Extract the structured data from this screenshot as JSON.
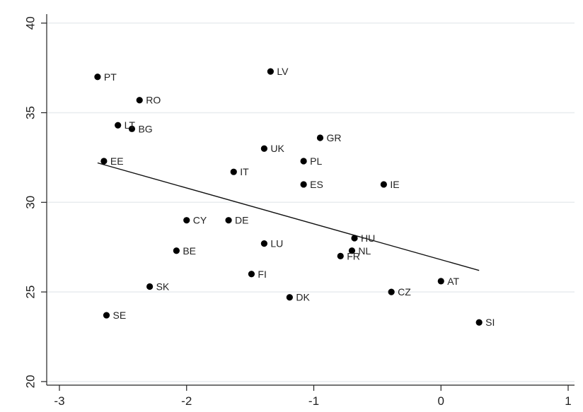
{
  "chart_data": {
    "type": "scatter",
    "title": "",
    "xlabel": "",
    "ylabel": "",
    "xlim": [
      -3.1,
      1.05
    ],
    "ylim": [
      19.8,
      40.5
    ],
    "x_ticks": [
      -3,
      -2,
      -1,
      0,
      1
    ],
    "y_ticks": [
      20,
      25,
      30,
      35,
      40
    ],
    "grid": "horizontal",
    "points": [
      {
        "label": "PT",
        "x": -2.7,
        "y": 37.0
      },
      {
        "label": "LV",
        "x": -1.34,
        "y": 37.3
      },
      {
        "label": "RO",
        "x": -2.37,
        "y": 35.7
      },
      {
        "label": "LT",
        "x": -2.54,
        "y": 34.3
      },
      {
        "label": "BG",
        "x": -2.43,
        "y": 34.1
      },
      {
        "label": "GR",
        "x": -0.95,
        "y": 33.6
      },
      {
        "label": "UK",
        "x": -1.39,
        "y": 33.0
      },
      {
        "label": "EE",
        "x": -2.65,
        "y": 32.3
      },
      {
        "label": "PL",
        "x": -1.08,
        "y": 32.3
      },
      {
        "label": "IT",
        "x": -1.63,
        "y": 31.7
      },
      {
        "label": "ES",
        "x": -1.08,
        "y": 31.0
      },
      {
        "label": "IE",
        "x": -0.45,
        "y": 31.0
      },
      {
        "label": "CY",
        "x": -2.0,
        "y": 29.0
      },
      {
        "label": "DE",
        "x": -1.67,
        "y": 29.0
      },
      {
        "label": "HU",
        "x": -0.68,
        "y": 28.0
      },
      {
        "label": "LU",
        "x": -1.39,
        "y": 27.7
      },
      {
        "label": "BE",
        "x": -2.08,
        "y": 27.3
      },
      {
        "label": "NL",
        "x": -0.7,
        "y": 27.3
      },
      {
        "label": "FR",
        "x": -0.79,
        "y": 27.0
      },
      {
        "label": "FI",
        "x": -1.49,
        "y": 26.0
      },
      {
        "label": "AT",
        "x": 0.0,
        "y": 25.6
      },
      {
        "label": "SK",
        "x": -2.29,
        "y": 25.3
      },
      {
        "label": "CZ",
        "x": -0.39,
        "y": 25.0
      },
      {
        "label": "DK",
        "x": -1.19,
        "y": 24.7
      },
      {
        "label": "SE",
        "x": -2.63,
        "y": 23.7
      },
      {
        "label": "SI",
        "x": 0.3,
        "y": 23.3
      }
    ],
    "fit_line": {
      "x": [
        -2.7,
        0.3
      ],
      "y": [
        32.2,
        26.2
      ]
    }
  }
}
